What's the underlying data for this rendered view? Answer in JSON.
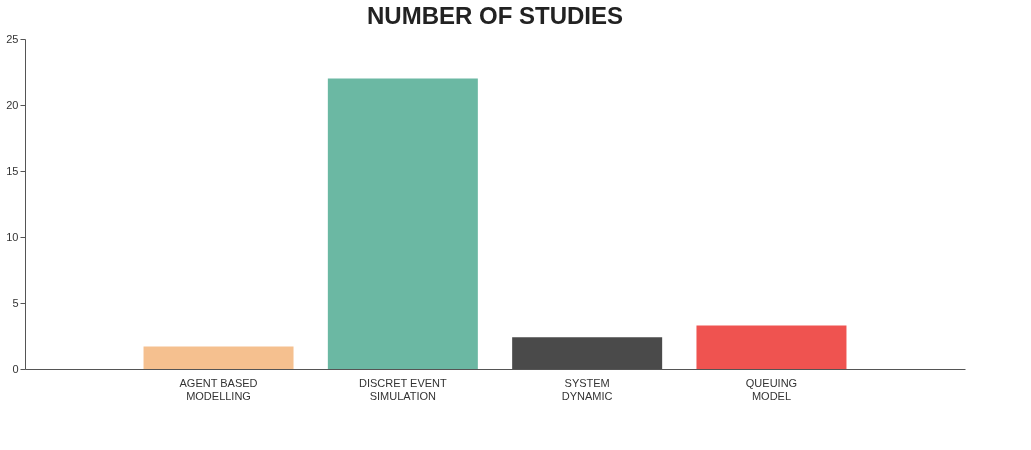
{
  "chart_data": {
    "type": "bar",
    "title": "NUMBER OF STUDIES",
    "categories": [
      "AGENT BASED\nMODELLING",
      "DISCRET EVENT\nSIMULATION",
      "SYSTEM\nDYNAMIC",
      "QUEUING\nMODEL"
    ],
    "values": [
      1.7,
      22,
      2.4,
      3.3
    ],
    "colors": [
      "#f5c08f",
      "#6bb8a3",
      "#4a4a4a",
      "#ef5350"
    ],
    "ylim": [
      0,
      25
    ],
    "yticks": [
      0,
      5,
      10,
      15,
      20,
      25
    ],
    "grid": false
  }
}
